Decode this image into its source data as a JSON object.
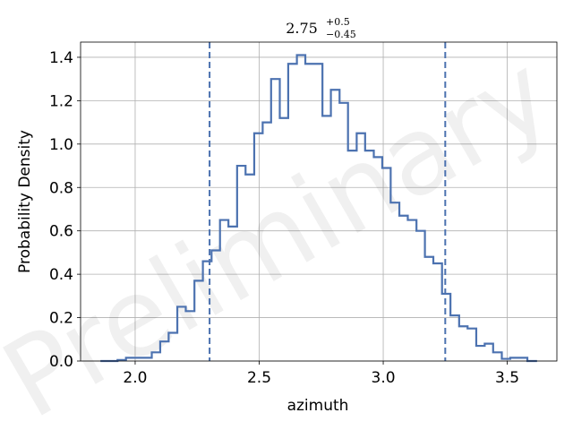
{
  "chart_data": {
    "type": "histogram",
    "title": {
      "value": "2.75",
      "sup": "+0.5",
      "sub": "−0.45"
    },
    "xlabel": "azimuth",
    "ylabel": "Probability Density",
    "xlim": [
      1.78,
      3.7
    ],
    "ylim": [
      0,
      1.47
    ],
    "xticks": [
      2.0,
      2.5,
      3.0,
      3.5
    ],
    "yticks": [
      0.0,
      0.2,
      0.4,
      0.6,
      0.8,
      1.0,
      1.2,
      1.4
    ],
    "xtick_labels": [
      "2.0",
      "2.5",
      "3.0",
      "3.5"
    ],
    "ytick_labels": [
      "0.0",
      "0.2",
      "0.4",
      "0.6",
      "0.8",
      "1.0",
      "1.2",
      "1.4"
    ],
    "grid": true,
    "vlines": [
      2.3,
      3.25
    ],
    "series_color": "#4c72b0",
    "bin_edges": [
      1.86,
      1.894,
      1.929,
      1.963,
      1.998,
      2.032,
      2.067,
      2.101,
      2.135,
      2.17,
      2.204,
      2.239,
      2.273,
      2.308,
      2.342,
      2.376,
      2.411,
      2.445,
      2.48,
      2.514,
      2.548,
      2.583,
      2.617,
      2.652,
      2.686,
      2.721,
      2.755,
      2.789,
      2.824,
      2.858,
      2.893,
      2.927,
      2.962,
      2.996,
      3.03,
      3.065,
      3.099,
      3.134,
      3.168,
      3.202,
      3.237,
      3.271,
      3.306,
      3.34,
      3.375,
      3.409,
      3.443,
      3.478,
      3.512,
      3.547,
      3.581,
      3.62
    ],
    "values": [
      0.0,
      0.0,
      0.005,
      0.015,
      0.015,
      0.015,
      0.04,
      0.09,
      0.13,
      0.25,
      0.23,
      0.37,
      0.46,
      0.51,
      0.65,
      0.62,
      0.9,
      0.86,
      1.05,
      1.1,
      1.3,
      1.12,
      1.37,
      1.41,
      1.37,
      1.37,
      1.13,
      1.25,
      1.19,
      0.97,
      1.05,
      0.97,
      0.94,
      0.89,
      0.73,
      0.67,
      0.65,
      0.6,
      0.48,
      0.45,
      0.31,
      0.21,
      0.16,
      0.15,
      0.07,
      0.08,
      0.04,
      0.01,
      0.015,
      0.015,
      0.0
    ]
  },
  "watermark": "Preliminary"
}
